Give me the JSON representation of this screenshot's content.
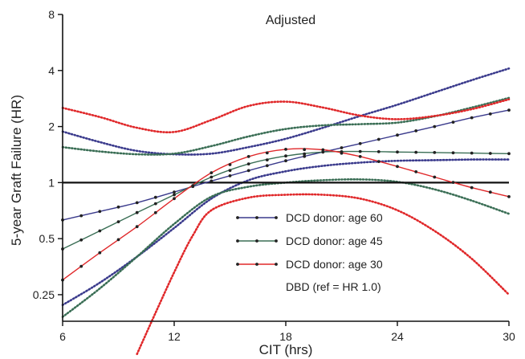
{
  "chart_data": {
    "type": "line",
    "title": "Adjusted",
    "xlabel": "CIT (hrs)",
    "ylabel": "5-year Graft Failure (HR)",
    "y_scale": "log2",
    "xlim": [
      6,
      30
    ],
    "ylim": [
      0.18,
      8
    ],
    "x_ticks": [
      6,
      12,
      18,
      24,
      30
    ],
    "y_ticks": [
      0.25,
      0.5,
      1,
      2,
      4,
      8
    ],
    "y_tick_labels": [
      "0.25",
      "0.5",
      "1",
      "2",
      "4",
      "8"
    ],
    "grid": false,
    "legend_position": "bottom-center",
    "reference_line": {
      "y": 1,
      "label": "DBD (ref = HR 1.0)",
      "color": "#111111"
    },
    "series": [
      {
        "name": "DCD donor: age 60",
        "color": "#3a3a8c",
        "marker_step": 1,
        "x": [
          6,
          8,
          10,
          12,
          14,
          16,
          18,
          20,
          22,
          24,
          26,
          28,
          30
        ],
        "y": [
          0.63,
          0.7,
          0.78,
          0.89,
          1.02,
          1.16,
          1.31,
          1.46,
          1.62,
          1.8,
          2.0,
          2.23,
          2.45
        ],
        "ci_low_x": [
          6,
          8,
          10,
          12,
          14,
          16,
          18,
          20,
          22,
          24,
          26,
          28,
          30
        ],
        "ci_low": [
          0.22,
          0.29,
          0.4,
          0.57,
          0.82,
          1.03,
          1.15,
          1.23,
          1.28,
          1.31,
          1.32,
          1.33,
          1.33
        ],
        "ci_high_x": [
          6,
          8,
          10,
          12,
          14,
          16,
          18,
          20,
          22,
          24,
          26,
          28,
          30
        ],
        "ci_high": [
          1.88,
          1.65,
          1.48,
          1.42,
          1.43,
          1.55,
          1.72,
          1.97,
          2.28,
          2.62,
          3.05,
          3.55,
          4.1
        ]
      },
      {
        "name": "DCD donor: age 45",
        "color": "#3a6e55",
        "marker_step": 1,
        "x": [
          6,
          8,
          10,
          12,
          14,
          16,
          18,
          20,
          22,
          24,
          26,
          28,
          30
        ],
        "y": [
          0.44,
          0.55,
          0.69,
          0.86,
          1.07,
          1.26,
          1.39,
          1.46,
          1.47,
          1.46,
          1.45,
          1.44,
          1.43
        ],
        "ci_low_x": [
          6,
          8,
          10,
          12,
          14,
          16,
          18,
          20,
          22,
          24,
          26,
          28,
          30
        ],
        "ci_low": [
          0.19,
          0.27,
          0.4,
          0.6,
          0.84,
          0.95,
          1.0,
          1.03,
          1.04,
          1.01,
          0.92,
          0.8,
          0.68
        ],
        "ci_high_x": [
          6,
          8,
          10,
          12,
          14,
          16,
          18,
          20,
          22,
          24,
          26,
          28,
          30
        ],
        "ci_high": [
          1.55,
          1.47,
          1.42,
          1.43,
          1.57,
          1.77,
          1.94,
          2.03,
          2.06,
          2.1,
          2.27,
          2.53,
          2.85
        ]
      },
      {
        "name": "DCD donor: age 30",
        "color": "#e0282a",
        "marker_step": 1,
        "x": [
          6,
          8,
          10,
          12,
          14,
          16,
          18,
          20,
          22,
          24,
          26,
          28,
          30
        ],
        "y": [
          0.3,
          0.42,
          0.58,
          0.82,
          1.13,
          1.38,
          1.51,
          1.5,
          1.38,
          1.22,
          1.07,
          0.94,
          0.84
        ],
        "ci_low_x": [
          10,
          11,
          12,
          13,
          14,
          16,
          18,
          20,
          22,
          24,
          26,
          28,
          30
        ],
        "ci_low": [
          0.12,
          0.2,
          0.33,
          0.52,
          0.71,
          0.83,
          0.86,
          0.86,
          0.82,
          0.71,
          0.55,
          0.39,
          0.25
        ],
        "ci_high_x": [
          6,
          8,
          10,
          12,
          14,
          16,
          18,
          20,
          22,
          24,
          26,
          28,
          30
        ],
        "ci_high": [
          2.52,
          2.25,
          1.97,
          1.87,
          2.17,
          2.58,
          2.72,
          2.53,
          2.29,
          2.19,
          2.28,
          2.48,
          2.8
        ]
      }
    ]
  }
}
